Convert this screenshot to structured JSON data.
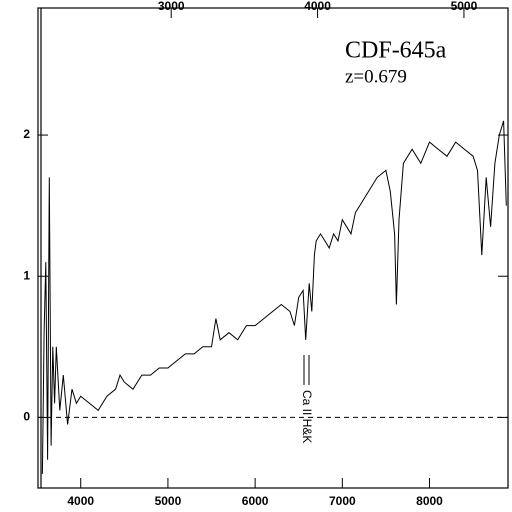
{
  "chart_data": {
    "type": "line",
    "title": "CDF-645a",
    "subtitle": "z=0.679",
    "annotation": "Ca II H&K",
    "color": "#000000",
    "xlim": [
      3510,
      8900
    ],
    "xticks": [
      4000,
      5000,
      6000,
      7000,
      8000
    ],
    "x2lim": [
      2090,
      5301
    ],
    "x2ticks": [
      3000,
      4000,
      5000
    ],
    "ylim": [
      -0.5,
      2.9
    ],
    "yticks": [
      0,
      1,
      2
    ],
    "zero_line": true,
    "x": [
      3560,
      3580,
      3600,
      3620,
      3640,
      3660,
      3680,
      3700,
      3720,
      3760,
      3800,
      3850,
      3900,
      3950,
      4000,
      4100,
      4200,
      4300,
      4400,
      4450,
      4500,
      4600,
      4700,
      4800,
      4900,
      5000,
      5100,
      5200,
      5300,
      5400,
      5500,
      5550,
      5600,
      5700,
      5800,
      5900,
      6000,
      6100,
      6200,
      6300,
      6400,
      6450,
      6500,
      6550,
      6580,
      6620,
      6650,
      6680,
      6700,
      6750,
      6800,
      6850,
      6900,
      6950,
      7000,
      7050,
      7100,
      7150,
      7200,
      7300,
      7400,
      7500,
      7550,
      7600,
      7620,
      7650,
      7700,
      7800,
      7900,
      8000,
      8100,
      8200,
      8300,
      8400,
      8500,
      8550,
      8600,
      8650,
      8700,
      8750,
      8800,
      8850,
      8880
    ],
    "values": [
      -0.4,
      0.6,
      1.1,
      -0.3,
      1.7,
      -0.2,
      0.5,
      0.1,
      0.5,
      0.05,
      0.3,
      -0.05,
      0.2,
      0.1,
      0.15,
      0.1,
      0.05,
      0.15,
      0.2,
      0.3,
      0.25,
      0.2,
      0.3,
      0.3,
      0.35,
      0.35,
      0.4,
      0.45,
      0.45,
      0.5,
      0.5,
      0.7,
      0.55,
      0.6,
      0.55,
      0.65,
      0.65,
      0.7,
      0.75,
      0.8,
      0.75,
      0.65,
      0.85,
      0.9,
      0.55,
      0.95,
      0.75,
      1.15,
      1.25,
      1.3,
      1.25,
      1.2,
      1.3,
      1.25,
      1.4,
      1.35,
      1.3,
      1.45,
      1.5,
      1.6,
      1.7,
      1.75,
      1.6,
      1.3,
      0.8,
      1.4,
      1.8,
      1.9,
      1.8,
      1.95,
      1.9,
      1.85,
      1.95,
      1.9,
      1.85,
      1.75,
      1.15,
      1.7,
      1.35,
      1.8,
      2.0,
      2.1,
      1.5
    ]
  }
}
